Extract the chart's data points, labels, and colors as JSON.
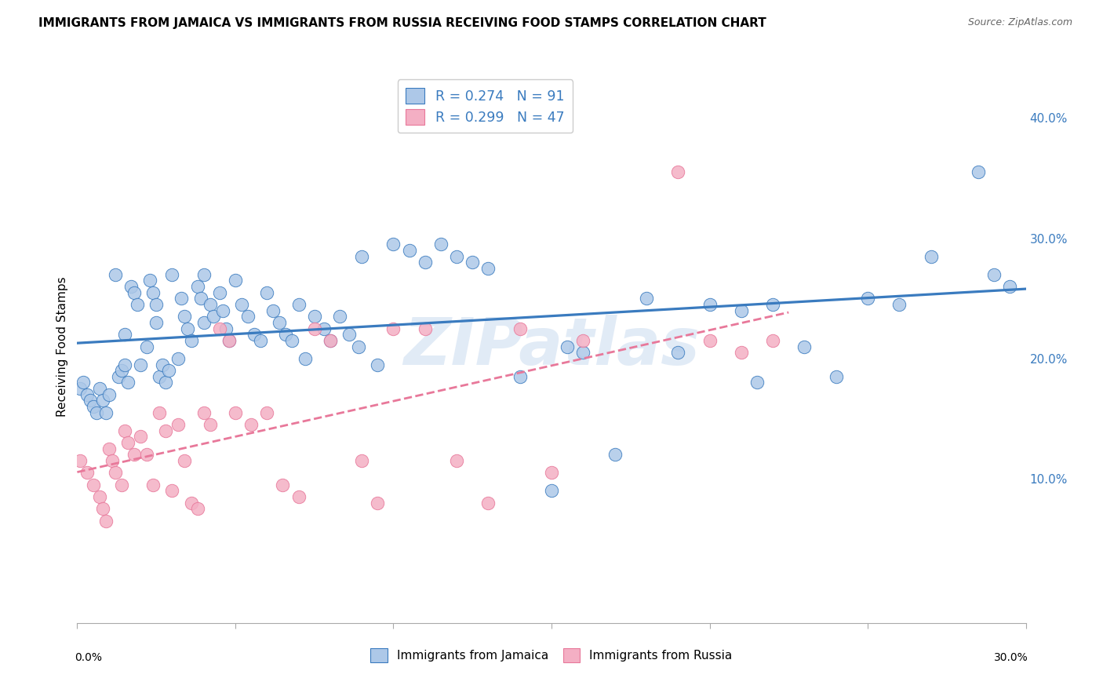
{
  "title": "IMMIGRANTS FROM JAMAICA VS IMMIGRANTS FROM RUSSIA RECEIVING FOOD STAMPS CORRELATION CHART",
  "source": "Source: ZipAtlas.com",
  "ylabel": "Receiving Food Stamps",
  "xlim": [
    0.0,
    0.3
  ],
  "ylim": [
    -0.02,
    0.44
  ],
  "yticks_right": [
    0.1,
    0.2,
    0.3,
    0.4
  ],
  "ytick_labels_right": [
    "10.0%",
    "20.0%",
    "30.0%",
    "40.0%"
  ],
  "xticks": [
    0.0,
    0.05,
    0.1,
    0.15,
    0.2,
    0.25,
    0.3
  ],
  "jamaica_color": "#adc8e8",
  "russia_color": "#f4afc4",
  "jamaica_line_color": "#3a7bbf",
  "russia_line_color": "#e8789a",
  "jamaica_label": "Immigrants from Jamaica",
  "russia_label": "Immigrants from Russia",
  "jamaica_R": "0.274",
  "jamaica_N": "91",
  "russia_R": "0.299",
  "russia_N": "47",
  "background_color": "#ffffff",
  "grid_color": "#cccccc",
  "watermark": "ZIPatlas",
  "jamaica_x": [
    0.001,
    0.002,
    0.003,
    0.004,
    0.005,
    0.006,
    0.007,
    0.008,
    0.009,
    0.01,
    0.012,
    0.013,
    0.014,
    0.015,
    0.015,
    0.016,
    0.017,
    0.018,
    0.019,
    0.02,
    0.022,
    0.023,
    0.024,
    0.025,
    0.025,
    0.026,
    0.027,
    0.028,
    0.029,
    0.03,
    0.032,
    0.033,
    0.034,
    0.035,
    0.036,
    0.038,
    0.039,
    0.04,
    0.04,
    0.042,
    0.043,
    0.045,
    0.046,
    0.047,
    0.048,
    0.05,
    0.052,
    0.054,
    0.056,
    0.058,
    0.06,
    0.062,
    0.064,
    0.066,
    0.068,
    0.07,
    0.072,
    0.075,
    0.078,
    0.08,
    0.083,
    0.086,
    0.089,
    0.09,
    0.095,
    0.1,
    0.105,
    0.11,
    0.115,
    0.12,
    0.125,
    0.13,
    0.14,
    0.15,
    0.155,
    0.16,
    0.17,
    0.18,
    0.19,
    0.2,
    0.21,
    0.215,
    0.22,
    0.23,
    0.24,
    0.25,
    0.26,
    0.27,
    0.285,
    0.29,
    0.295
  ],
  "jamaica_y": [
    0.175,
    0.18,
    0.17,
    0.165,
    0.16,
    0.155,
    0.175,
    0.165,
    0.155,
    0.17,
    0.27,
    0.185,
    0.19,
    0.22,
    0.195,
    0.18,
    0.26,
    0.255,
    0.245,
    0.195,
    0.21,
    0.265,
    0.255,
    0.245,
    0.23,
    0.185,
    0.195,
    0.18,
    0.19,
    0.27,
    0.2,
    0.25,
    0.235,
    0.225,
    0.215,
    0.26,
    0.25,
    0.27,
    0.23,
    0.245,
    0.235,
    0.255,
    0.24,
    0.225,
    0.215,
    0.265,
    0.245,
    0.235,
    0.22,
    0.215,
    0.255,
    0.24,
    0.23,
    0.22,
    0.215,
    0.245,
    0.2,
    0.235,
    0.225,
    0.215,
    0.235,
    0.22,
    0.21,
    0.285,
    0.195,
    0.295,
    0.29,
    0.28,
    0.295,
    0.285,
    0.28,
    0.275,
    0.185,
    0.09,
    0.21,
    0.205,
    0.12,
    0.25,
    0.205,
    0.245,
    0.24,
    0.18,
    0.245,
    0.21,
    0.185,
    0.25,
    0.245,
    0.285,
    0.355,
    0.27,
    0.26
  ],
  "russia_x": [
    0.001,
    0.003,
    0.005,
    0.007,
    0.008,
    0.009,
    0.01,
    0.011,
    0.012,
    0.014,
    0.015,
    0.016,
    0.018,
    0.02,
    0.022,
    0.024,
    0.026,
    0.028,
    0.03,
    0.032,
    0.034,
    0.036,
    0.038,
    0.04,
    0.042,
    0.045,
    0.048,
    0.05,
    0.055,
    0.06,
    0.065,
    0.07,
    0.075,
    0.08,
    0.09,
    0.095,
    0.1,
    0.11,
    0.12,
    0.13,
    0.14,
    0.15,
    0.16,
    0.19,
    0.2,
    0.21,
    0.22
  ],
  "russia_y": [
    0.115,
    0.105,
    0.095,
    0.085,
    0.075,
    0.065,
    0.125,
    0.115,
    0.105,
    0.095,
    0.14,
    0.13,
    0.12,
    0.135,
    0.12,
    0.095,
    0.155,
    0.14,
    0.09,
    0.145,
    0.115,
    0.08,
    0.075,
    0.155,
    0.145,
    0.225,
    0.215,
    0.155,
    0.145,
    0.155,
    0.095,
    0.085,
    0.225,
    0.215,
    0.115,
    0.08,
    0.225,
    0.225,
    0.115,
    0.08,
    0.225,
    0.105,
    0.215,
    0.355,
    0.215,
    0.205,
    0.215
  ]
}
